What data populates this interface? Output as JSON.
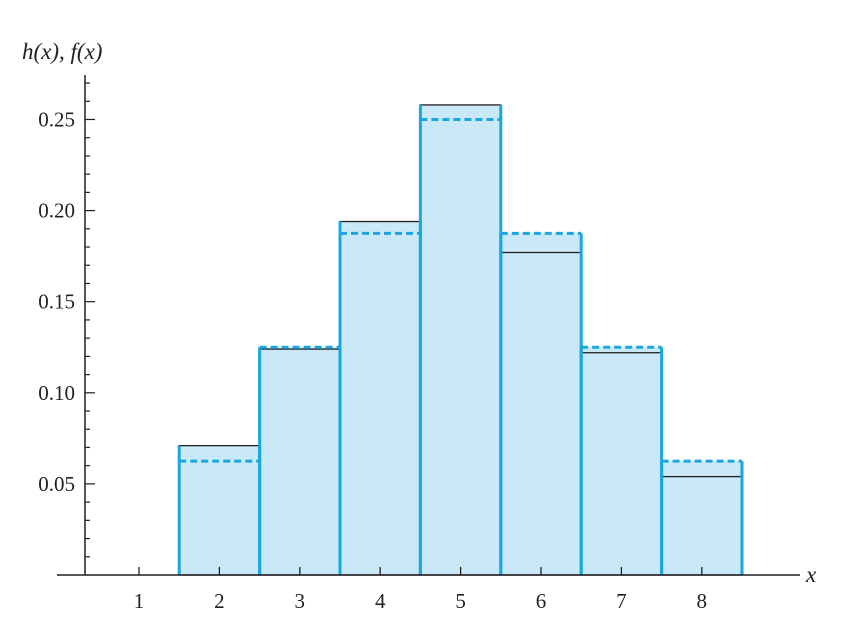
{
  "chart_data": {
    "type": "bar",
    "ylabel": "h(x), f(x)",
    "xlabel": "x",
    "x_ticks": [
      "1",
      "2",
      "3",
      "4",
      "5",
      "6",
      "7",
      "8"
    ],
    "y_ticks": [
      "0.05",
      "0.10",
      "0.15",
      "0.20",
      "0.25"
    ],
    "xlim": [
      0.45,
      9.1
    ],
    "ylim": [
      0,
      0.28
    ],
    "categories": [
      2,
      3,
      4,
      5,
      6,
      7,
      8
    ],
    "series": [
      {
        "style": "histogram (thin black outline)",
        "values": [
          0.071,
          0.124,
          0.194,
          0.258,
          0.177,
          0.122,
          0.054
        ]
      },
      {
        "style": "probability histogram (blue filled, dashed tops)",
        "values": [
          0.0625,
          0.125,
          0.1875,
          0.25,
          0.1875,
          0.125,
          0.0625
        ]
      }
    ],
    "grid": false,
    "colors": {
      "fill": "#c9e9f8",
      "blue": "#1aa7df",
      "black": "#231f20"
    }
  }
}
